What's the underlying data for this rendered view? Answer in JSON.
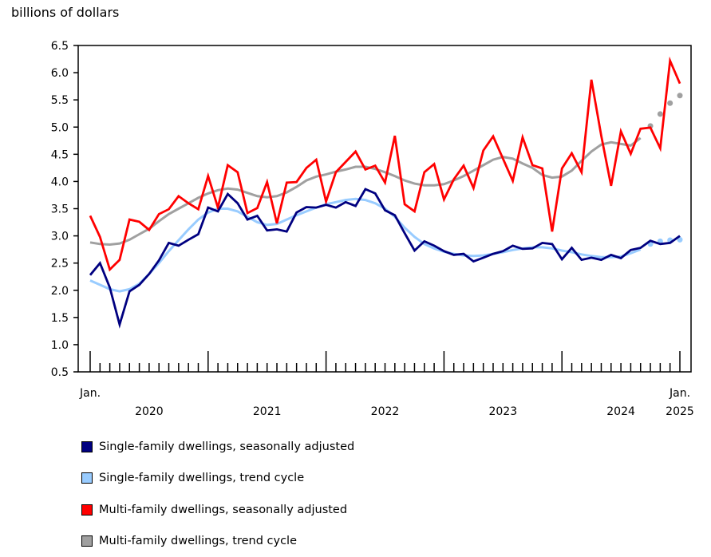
{
  "chart_data": {
    "type": "line",
    "ylabel": "billions of dollars",
    "ylim": [
      0.5,
      6.5
    ],
    "yticks": [
      "0.5",
      "1.0",
      "1.5",
      "2.0",
      "2.5",
      "3.0",
      "3.5",
      "4.0",
      "4.5",
      "5.0",
      "5.5",
      "6.0",
      "6.5"
    ],
    "x_start": "2020-01",
    "x_end": "2025-01",
    "x_first_label": "Jan.",
    "x_last_label": "Jan.",
    "year_labels": [
      "2020",
      "2021",
      "2022",
      "2023",
      "2024",
      "2025"
    ],
    "grid": false,
    "legend_position": "bottom",
    "series": [
      {
        "name": "Single-family dwellings, seasonally adjusted",
        "color": "#000080",
        "values": [
          2.28,
          2.5,
          2.05,
          1.37,
          1.98,
          2.1,
          2.3,
          2.55,
          2.87,
          2.82,
          2.93,
          3.03,
          3.52,
          3.45,
          3.77,
          3.6,
          3.3,
          3.37,
          3.1,
          3.12,
          3.08,
          3.43,
          3.53,
          3.52,
          3.57,
          3.52,
          3.62,
          3.55,
          3.86,
          3.78,
          3.47,
          3.38,
          3.05,
          2.73,
          2.9,
          2.82,
          2.72,
          2.65,
          2.67,
          2.53,
          2.6,
          2.67,
          2.72,
          2.82,
          2.76,
          2.77,
          2.87,
          2.85,
          2.57,
          2.78,
          2.56,
          2.6,
          2.56,
          2.65,
          2.59,
          2.74,
          2.78,
          2.91,
          2.85,
          2.87,
          3.0
        ]
      },
      {
        "name": "Single-family dwellings, trend cycle",
        "color": "#99ccff",
        "projected_from_index": 57,
        "values": [
          2.18,
          2.1,
          2.02,
          1.98,
          2.02,
          2.12,
          2.3,
          2.5,
          2.72,
          2.92,
          3.12,
          3.3,
          3.43,
          3.5,
          3.5,
          3.45,
          3.35,
          3.25,
          3.2,
          3.22,
          3.3,
          3.38,
          3.45,
          3.52,
          3.58,
          3.62,
          3.66,
          3.68,
          3.66,
          3.6,
          3.5,
          3.35,
          3.15,
          2.98,
          2.85,
          2.77,
          2.71,
          2.67,
          2.64,
          2.63,
          2.64,
          2.67,
          2.7,
          2.74,
          2.77,
          2.79,
          2.79,
          2.77,
          2.73,
          2.7,
          2.66,
          2.63,
          2.61,
          2.61,
          2.62,
          2.68,
          2.75,
          2.85,
          2.9,
          2.92,
          2.93
        ]
      },
      {
        "name": "Multi-family dwellings, seasonally adjusted",
        "color": "#ff0000",
        "values": [
          3.37,
          2.98,
          2.38,
          2.56,
          3.3,
          3.26,
          3.11,
          3.4,
          3.49,
          3.73,
          3.6,
          3.49,
          4.1,
          3.52,
          4.3,
          4.17,
          3.42,
          3.51,
          3.99,
          3.23,
          3.98,
          3.99,
          4.25,
          4.4,
          3.63,
          4.17,
          4.36,
          4.55,
          4.22,
          4.29,
          3.98,
          4.84,
          3.58,
          3.45,
          4.17,
          4.32,
          3.67,
          4.04,
          4.29,
          3.88,
          4.57,
          4.83,
          4.42,
          4.01,
          4.81,
          4.3,
          4.24,
          3.08,
          4.24,
          4.52,
          4.17,
          5.87,
          4.84,
          3.92,
          4.92,
          4.51,
          4.97,
          4.99,
          4.61,
          6.22,
          5.8
        ]
      },
      {
        "name": "Multi-family dwellings, trend cycle",
        "color": "#a0a0a0",
        "projected_from_index": 57,
        "values": [
          2.88,
          2.85,
          2.84,
          2.86,
          2.93,
          3.03,
          3.13,
          3.27,
          3.4,
          3.5,
          3.6,
          3.7,
          3.78,
          3.84,
          3.87,
          3.85,
          3.79,
          3.73,
          3.71,
          3.73,
          3.8,
          3.9,
          4.02,
          4.09,
          4.13,
          4.18,
          4.22,
          4.27,
          4.27,
          4.23,
          4.17,
          4.1,
          4.02,
          3.96,
          3.93,
          3.93,
          3.95,
          4.02,
          4.1,
          4.2,
          4.3,
          4.4,
          4.45,
          4.42,
          4.33,
          4.25,
          4.12,
          4.07,
          4.09,
          4.2,
          4.38,
          4.55,
          4.68,
          4.72,
          4.69,
          4.66,
          4.8,
          5.02,
          5.24,
          5.44,
          5.58
        ]
      }
    ]
  }
}
